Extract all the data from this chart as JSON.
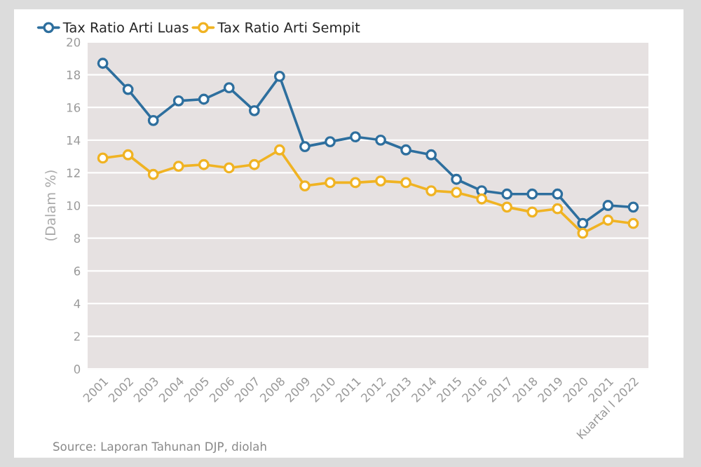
{
  "chart_data": {
    "type": "line",
    "categories": [
      "2001",
      "2002",
      "2003",
      "2004",
      "2005",
      "2006",
      "2007",
      "2008",
      "2009",
      "2010",
      "2011",
      "2012",
      "2013",
      "2014",
      "2015",
      "2016",
      "2017",
      "2018",
      "2019",
      "2020",
      "2021",
      "Kuartal I 2022"
    ],
    "series": [
      {
        "name": "Tax Ratio Arti Luas",
        "color": "#2e6f9e",
        "values": [
          18.7,
          17.1,
          15.2,
          16.4,
          16.5,
          17.2,
          15.8,
          17.9,
          13.6,
          13.9,
          14.2,
          14.0,
          13.4,
          13.1,
          11.6,
          10.9,
          10.7,
          10.7,
          10.7,
          8.9,
          10.0,
          9.9
        ]
      },
      {
        "name": "Tax Ratio Arti Sempit",
        "color": "#f0b323",
        "values": [
          12.9,
          13.1,
          11.9,
          12.4,
          12.5,
          12.3,
          12.5,
          13.4,
          11.2,
          11.4,
          11.4,
          11.5,
          11.4,
          10.9,
          10.8,
          10.4,
          9.9,
          9.6,
          9.8,
          8.3,
          9.1,
          8.9
        ]
      }
    ],
    "ylabel": "(Dalam %)",
    "ylim": [
      0,
      20
    ],
    "yticks": [
      0,
      2,
      4,
      6,
      8,
      10,
      12,
      14,
      16,
      18,
      20
    ],
    "grid": "y",
    "legend": "top left",
    "marker": "circle",
    "line_style": "solid",
    "annotations": [
      "Source: Laporan Tahunan DJP, diolah"
    ]
  }
}
